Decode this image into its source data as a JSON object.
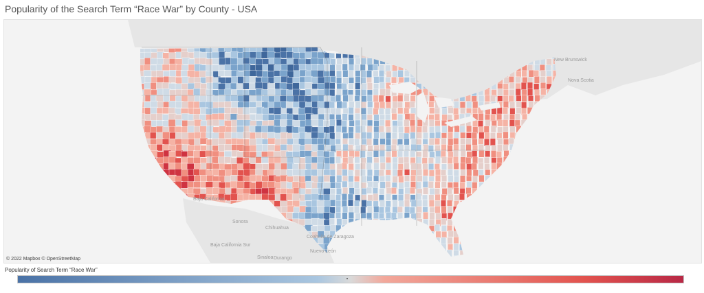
{
  "title": "Popularity of the Search Term “Race War” by County - USA",
  "attribution": "© 2022 Mapbox © OpenStreetMap",
  "legend": {
    "title": "Popularity of Search Term “Race War”",
    "color_low": "#4a72a6",
    "color_mid": "#d9d9d9",
    "color_high": "#b82845"
  },
  "geo_labels": {
    "new_brunswick": "New Brunswick",
    "nova_scotia": "Nova Scotia",
    "baja_california": "Baja California",
    "baja_california_sur": "Baja California Sur",
    "sonora": "Sonora",
    "chihuahua": "Chihuahua",
    "coahuila": "Coahuila de Zaragoza",
    "nuevo_leon": "Nuevo León",
    "sinaloa": "Sinaloa",
    "durango": "Durango"
  },
  "colors": {
    "land_background": "#e6e6e6",
    "water": "#f3f3f3",
    "county_border": "#ffffff"
  }
}
